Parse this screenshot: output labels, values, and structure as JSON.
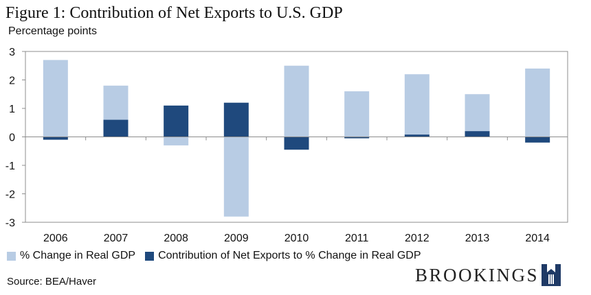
{
  "chart_data": {
    "type": "bar",
    "title": "Figure 1: Contribution of Net Exports to U.S. GDP",
    "ylabel": "Percentage points",
    "xlabel": "",
    "ylim": [
      -3,
      3
    ],
    "yticks": [
      3,
      2,
      1,
      0,
      -1,
      -2,
      -3
    ],
    "categories": [
      "2006",
      "2007",
      "2008",
      "2009",
      "2010",
      "2011",
      "2012",
      "2013",
      "2014"
    ],
    "series": [
      {
        "name": "% Change in Real GDP",
        "color": "#b8cce4",
        "values": [
          2.7,
          1.8,
          -0.3,
          -2.8,
          2.5,
          1.6,
          2.2,
          1.5,
          2.4
        ]
      },
      {
        "name": "Contribution of Net Exports to % Change in Real GDP",
        "color": "#1f497d",
        "values": [
          -0.1,
          0.6,
          1.1,
          1.2,
          -0.45,
          -0.05,
          0.08,
          0.2,
          -0.2
        ]
      }
    ],
    "grid": false,
    "legend": "bottom-left"
  },
  "source": "Source: BEA/Haver",
  "logo": {
    "text": "BROOKINGS",
    "icon": "brookings-building-icon"
  }
}
